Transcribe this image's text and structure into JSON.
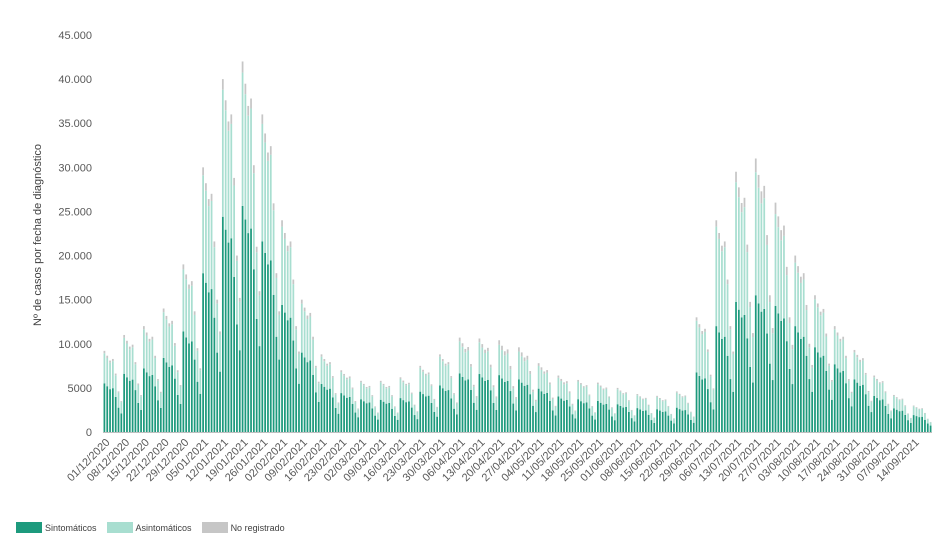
{
  "chart_data": {
    "type": "bar",
    "stacked": true,
    "ylabel": "Nº de casos por fecha de diagnóstico",
    "xlabel": "",
    "ylim": [
      0,
      45000
    ],
    "yticks": [
      0,
      5000,
      10000,
      15000,
      20000,
      25000,
      30000,
      35000,
      40000,
      45000
    ],
    "ytick_labels": [
      "0",
      "5000",
      "10.000",
      "15.000",
      "20.000",
      "25.000",
      "30.000",
      "35.000",
      "40.000",
      "45.000"
    ],
    "start_date": "01/12/2020",
    "end_date": "20/09/2021",
    "x_tick_labels": [
      "01/12/2020",
      "08/12/2020",
      "15/12/2020",
      "22/12/2020",
      "29/12/2020",
      "05/01/2021",
      "12/01/2021",
      "19/01/2021",
      "26/01/2021",
      "02/02/2021",
      "09/02/2021",
      "16/02/2021",
      "23/02/2021",
      "02/03/2021",
      "09/03/2021",
      "16/03/2021",
      "23/03/2021",
      "30/03/2021",
      "06/04/2021",
      "13/04/2021",
      "20/04/2021",
      "27/04/2021",
      "04/05/2021",
      "11/05/2021",
      "18/05/2021",
      "25/05/2021",
      "01/06/2021",
      "08/06/2021",
      "15/06/2021",
      "22/06/2021",
      "29/06/2021",
      "06/07/2021",
      "13/07/2021",
      "20/07/2021",
      "27/07/2021",
      "03/08/2021",
      "10/08/2021",
      "17/08/2021",
      "24/08/2021",
      "31/08/2021",
      "07/09/2021",
      "14/09/2021"
    ],
    "weekday_factors": [
      1.0,
      0.94,
      0.88,
      0.9,
      0.72,
      0.5,
      0.38
    ],
    "weekly_totals": [
      9200,
      11000,
      12000,
      14000,
      19000,
      30000,
      40000,
      42000,
      36000,
      24000,
      15000,
      8800,
      7000,
      5800,
      5800,
      6200,
      7500,
      8800,
      10700,
      10600,
      10400,
      9600,
      7800,
      6400,
      5900,
      5600,
      5000,
      4300,
      4100,
      4600,
      13000,
      24000,
      29500,
      31000,
      26000,
      20000,
      15500,
      12000,
      9300,
      6400,
      4200,
      3000
    ],
    "weekly_symptomatic_share": [
      0.6,
      0.6,
      0.6,
      0.6,
      0.6,
      0.6,
      0.61,
      0.61,
      0.6,
      0.6,
      0.6,
      0.62,
      0.63,
      0.64,
      0.63,
      0.62,
      0.61,
      0.6,
      0.62,
      0.62,
      0.62,
      0.62,
      0.63,
      0.63,
      0.63,
      0.63,
      0.63,
      0.63,
      0.63,
      0.6,
      0.52,
      0.5,
      0.5,
      0.5,
      0.55,
      0.6,
      0.62,
      0.64,
      0.64,
      0.64,
      0.64,
      0.64
    ],
    "weekly_unregistered_share": [
      0.03,
      0.03,
      0.03,
      0.03,
      0.03,
      0.03,
      0.03,
      0.03,
      0.03,
      0.03,
      0.03,
      0.03,
      0.03,
      0.03,
      0.03,
      0.03,
      0.03,
      0.03,
      0.04,
      0.04,
      0.05,
      0.05,
      0.04,
      0.04,
      0.03,
      0.03,
      0.03,
      0.03,
      0.03,
      0.03,
      0.03,
      0.03,
      0.04,
      0.05,
      0.05,
      0.04,
      0.03,
      0.03,
      0.03,
      0.03,
      0.03,
      0.03
    ],
    "series": [
      {
        "name": "Sintomáticos",
        "color": "#1d9a7d"
      },
      {
        "name": "Asintomáticos",
        "color": "#a8ded0"
      },
      {
        "name": "No registrado",
        "color": "#c6c6c6"
      }
    ],
    "legend_position": "bottom-left",
    "grid": false
  },
  "legend": {
    "items": [
      {
        "label": "Sintomáticos",
        "color": "#1d9a7d"
      },
      {
        "label": "Asintomáticos",
        "color": "#a8ded0"
      },
      {
        "label": "No registrado",
        "color": "#c6c6c6"
      }
    ]
  }
}
